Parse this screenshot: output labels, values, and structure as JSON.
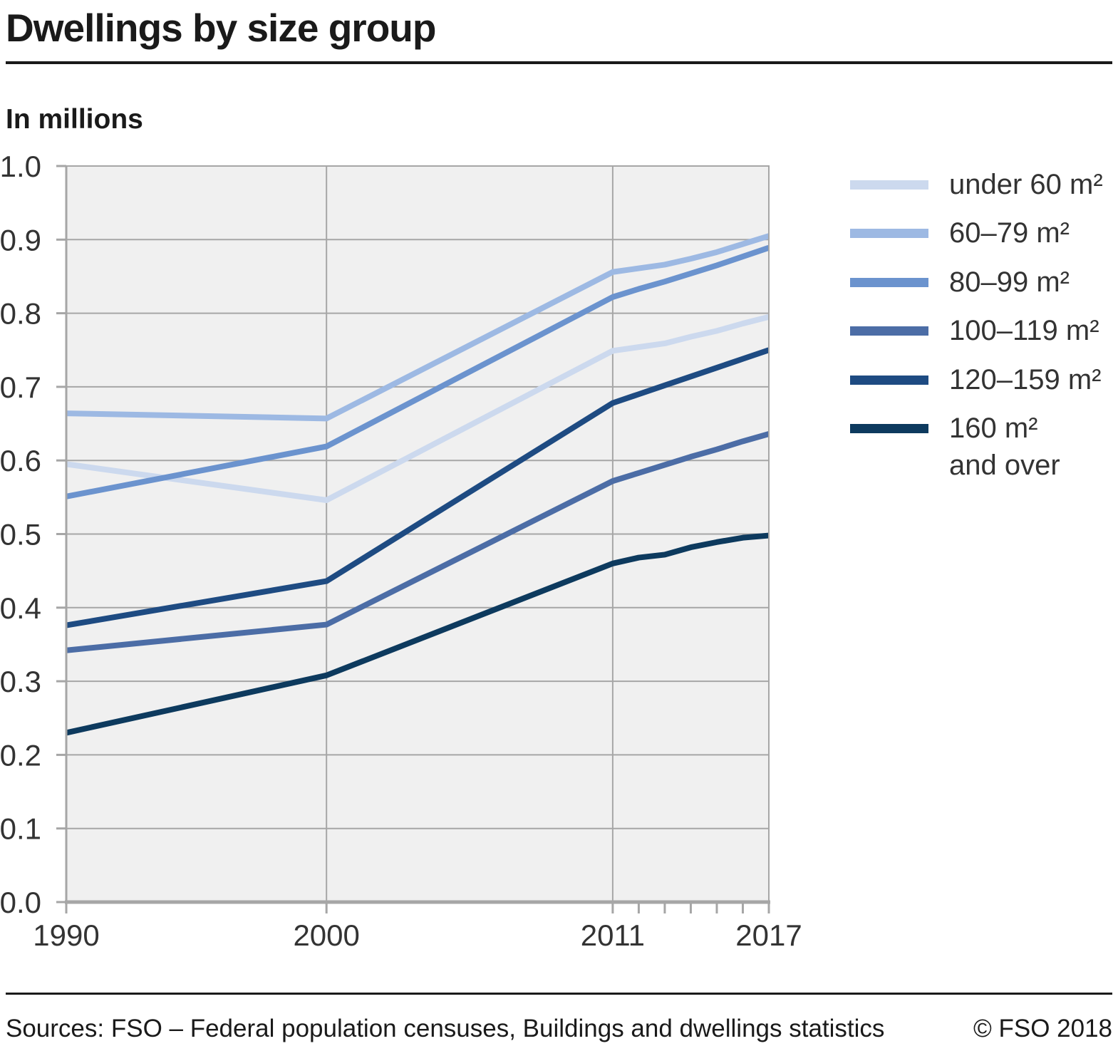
{
  "header": {
    "title": "Dwellings by size group",
    "subtitle": "In millions"
  },
  "footer": {
    "sources": "Sources: FSO – Federal population censuses, Buildings and dwellings statistics",
    "copyright": "© FSO 2018"
  },
  "colors": {
    "plot_background": "#f0f0f0",
    "gridline": "#a6a6a6",
    "axis": "#a6a6a6",
    "text": "#333333",
    "title_text": "#1a1a1a"
  },
  "chart_data": {
    "type": "line",
    "title": "Dwellings by size group",
    "unit_label": "In millions",
    "xlim": [
      1990,
      2017
    ],
    "ylim": [
      0,
      1.0
    ],
    "grid": true,
    "legend_position": "right",
    "x": [
      1990,
      2000,
      2011,
      2012,
      2013,
      2014,
      2015,
      2016,
      2017
    ],
    "xticks": [
      1990,
      2000,
      2011,
      2017
    ],
    "yticks": [
      "0.0",
      "0.1",
      "0.2",
      "0.3",
      "0.4",
      "0.5",
      "0.6",
      "0.7",
      "0.8",
      "0.9",
      "1.0"
    ],
    "series": [
      {
        "name": "under 60 m²",
        "color": "#ccd9ee",
        "values": [
          0.595,
          0.546,
          0.749,
          0.754,
          0.759,
          0.768,
          0.776,
          0.786,
          0.795
        ]
      },
      {
        "name": "60–79 m²",
        "color": "#9db9e3",
        "values": [
          0.664,
          0.657,
          0.856,
          0.861,
          0.866,
          0.874,
          0.883,
          0.894,
          0.905
        ]
      },
      {
        "name": "80–99 m²",
        "color": "#6b93ce",
        "values": [
          0.551,
          0.619,
          0.822,
          0.833,
          0.843,
          0.854,
          0.865,
          0.877,
          0.889
        ]
      },
      {
        "name": "100–119 m²",
        "color": "#4c6da6",
        "values": [
          0.342,
          0.377,
          0.572,
          0.583,
          0.594,
          0.605,
          0.615,
          0.626,
          0.636
        ]
      },
      {
        "name": "120–159 m²",
        "color": "#1e4b82",
        "values": [
          0.376,
          0.436,
          0.678,
          0.69,
          0.702,
          0.714,
          0.726,
          0.738,
          0.75
        ]
      },
      {
        "name": "160 m²",
        "name2": "and over",
        "color": "#0d3a5e",
        "values": [
          0.23,
          0.308,
          0.46,
          0.468,
          0.472,
          0.482,
          0.489,
          0.495,
          0.498
        ]
      }
    ]
  }
}
